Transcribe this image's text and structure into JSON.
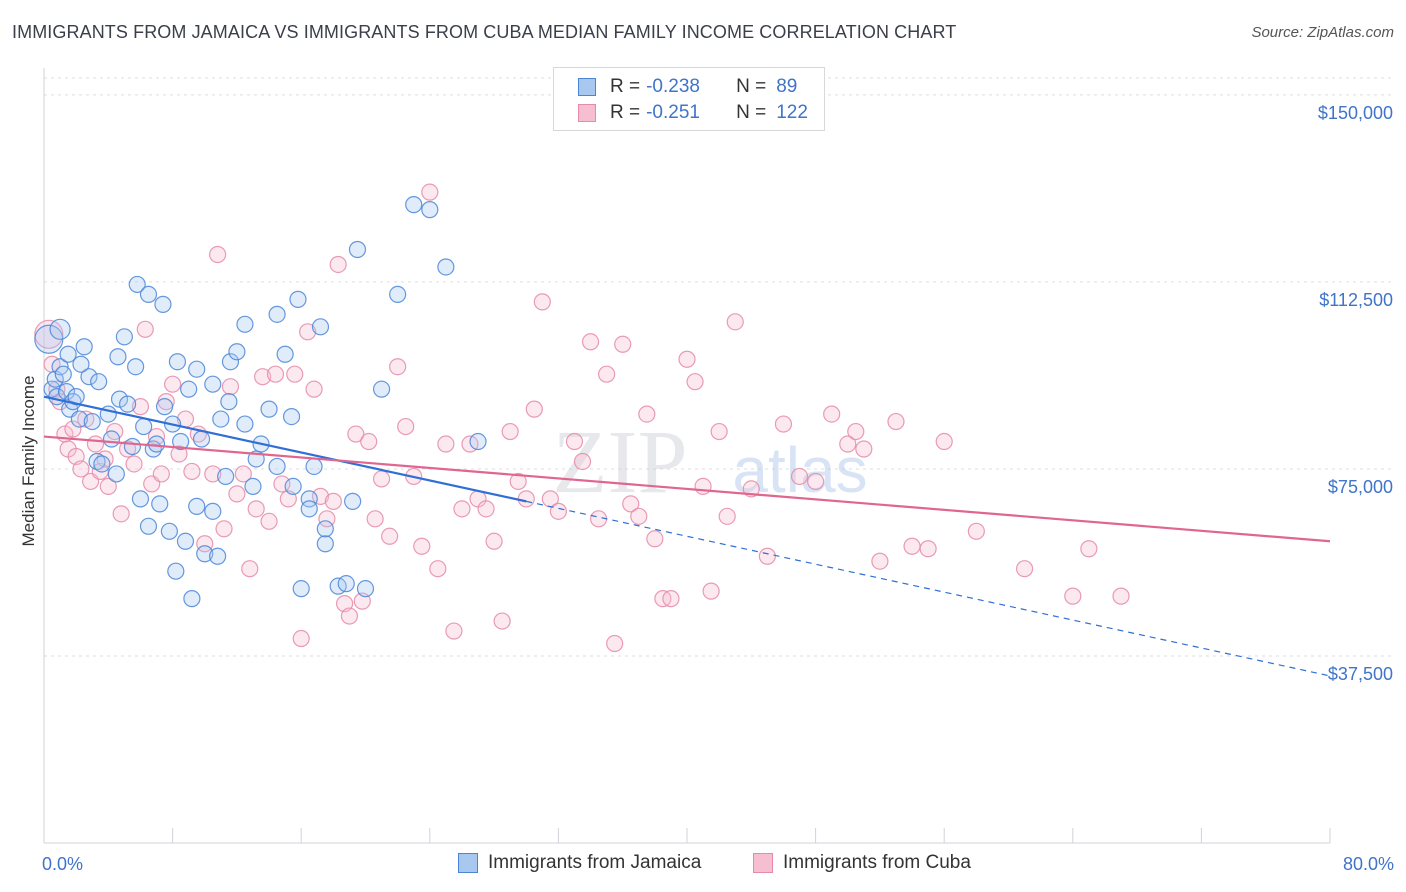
{
  "title": "IMMIGRANTS FROM JAMAICA VS IMMIGRANTS FROM CUBA MEDIAN FAMILY INCOME CORRELATION CHART",
  "source": "Source: ZipAtlas.com",
  "watermark": {
    "zip": "ZIP",
    "atlas": "atlas"
  },
  "colors": {
    "jamaica_fill": "#a9c8f0",
    "jamaica_stroke": "#4a86d8",
    "jamaica_line": "#2f6fd6",
    "cuba_fill": "#f6bfd1",
    "cuba_stroke": "#e58aa8",
    "cuba_line": "#e0668f",
    "tick_text": "#3f74c9",
    "grid": "#d9dde3"
  },
  "legend": {
    "rows": [
      {
        "r_label": "R =",
        "r_value": "-0.238",
        "n_label": "N =",
        "n_value": "89"
      },
      {
        "r_label": "R =",
        "r_value": "-0.251",
        "n_label": "N =",
        "n_value": "122"
      }
    ]
  },
  "bottom_legend": [
    "Immigrants from Jamaica",
    "Immigrants from Cuba"
  ],
  "chart_data": {
    "type": "scatter",
    "xlabel": "",
    "ylabel": "Median Family Income",
    "xlim": [
      0,
      80
    ],
    "ylim": [
      0,
      157000
    ],
    "x_tick_labels": [
      "0.0%",
      "80.0%"
    ],
    "y_ticks": [
      37500,
      75000,
      112500,
      150000
    ],
    "y_tick_labels": [
      "$37,500",
      "$75,000",
      "$112,500",
      "$150,000"
    ],
    "grid": true,
    "legend_position": "top-center",
    "series": [
      {
        "name": "Immigrants from Jamaica",
        "trend": {
          "x0": 0,
          "y0": 89500,
          "x1": 30,
          "y1": 68500,
          "dash_to_x": 80,
          "dash_to_y": 33500
        },
        "points": [
          [
            0.3,
            101000,
            14
          ],
          [
            0.5,
            91000,
            8
          ],
          [
            0.7,
            93000,
            8
          ],
          [
            0.8,
            89500,
            8
          ],
          [
            1.0,
            95500,
            8
          ],
          [
            1.2,
            94000,
            8
          ],
          [
            1.4,
            90500,
            8
          ],
          [
            1.6,
            87000,
            8
          ],
          [
            1.8,
            88500,
            8
          ],
          [
            2.0,
            89500,
            8
          ],
          [
            2.2,
            85000,
            8
          ],
          [
            2.5,
            99500,
            8
          ],
          [
            2.8,
            93500,
            8
          ],
          [
            3.0,
            84500,
            8
          ],
          [
            3.3,
            76500,
            8
          ],
          [
            3.6,
            76000,
            8
          ],
          [
            4.0,
            86000,
            8
          ],
          [
            4.2,
            81000,
            8
          ],
          [
            4.5,
            74000,
            8
          ],
          [
            4.7,
            89000,
            8
          ],
          [
            5.0,
            101500,
            8
          ],
          [
            5.2,
            88000,
            8
          ],
          [
            5.5,
            79500,
            8
          ],
          [
            5.7,
            95500,
            8
          ],
          [
            6.0,
            69000,
            8
          ],
          [
            6.2,
            83500,
            8
          ],
          [
            6.5,
            63500,
            8
          ],
          [
            6.8,
            79000,
            8
          ],
          [
            7.0,
            80000,
            8
          ],
          [
            7.2,
            68000,
            8
          ],
          [
            7.5,
            87500,
            8
          ],
          [
            7.8,
            62500,
            8
          ],
          [
            8.0,
            84000,
            8
          ],
          [
            8.2,
            54500,
            8
          ],
          [
            8.5,
            80500,
            8
          ],
          [
            8.8,
            60500,
            8
          ],
          [
            9.0,
            91000,
            8
          ],
          [
            9.2,
            49000,
            8
          ],
          [
            9.5,
            67500,
            8
          ],
          [
            9.8,
            81000,
            8
          ],
          [
            10.0,
            58000,
            8
          ],
          [
            10.5,
            66500,
            8
          ],
          [
            10.8,
            57500,
            8
          ],
          [
            11.0,
            85000,
            8
          ],
          [
            11.3,
            73500,
            8
          ],
          [
            11.6,
            96500,
            8
          ],
          [
            12.0,
            98500,
            8
          ],
          [
            12.5,
            104000,
            8
          ],
          [
            13.0,
            71500,
            8
          ],
          [
            13.2,
            77000,
            8
          ],
          [
            14.0,
            87000,
            8
          ],
          [
            14.5,
            106000,
            8
          ],
          [
            15.0,
            98000,
            8
          ],
          [
            15.4,
            85500,
            8
          ],
          [
            15.8,
            109000,
            8
          ],
          [
            16.0,
            51000,
            8
          ],
          [
            16.5,
            69000,
            8
          ],
          [
            16.8,
            75500,
            8
          ],
          [
            17.2,
            103500,
            8
          ],
          [
            17.5,
            60000,
            8
          ],
          [
            18.3,
            51500,
            8
          ],
          [
            18.8,
            52000,
            8
          ],
          [
            19.2,
            68500,
            8
          ],
          [
            19.5,
            119000,
            8
          ],
          [
            20.0,
            51000,
            8
          ],
          [
            21.0,
            91000,
            8
          ],
          [
            22.0,
            110000,
            8
          ],
          [
            23.0,
            128000,
            8
          ],
          [
            24.0,
            127000,
            8
          ],
          [
            25.0,
            115500,
            8
          ],
          [
            27.0,
            80500,
            8
          ],
          [
            1.0,
            103000,
            10
          ],
          [
            1.5,
            98000,
            8
          ],
          [
            2.3,
            96000,
            8
          ],
          [
            3.4,
            92500,
            8
          ],
          [
            4.6,
            97500,
            8
          ],
          [
            5.8,
            112000,
            8
          ],
          [
            6.5,
            110000,
            8
          ],
          [
            7.4,
            108000,
            8
          ],
          [
            8.3,
            96500,
            8
          ],
          [
            9.5,
            95000,
            8
          ],
          [
            10.5,
            92000,
            8
          ],
          [
            11.5,
            88500,
            8
          ],
          [
            12.5,
            84000,
            8
          ],
          [
            13.5,
            80000,
            8
          ],
          [
            14.5,
            75500,
            8
          ],
          [
            15.5,
            71500,
            8
          ],
          [
            16.5,
            67000,
            8
          ],
          [
            17.5,
            63000,
            8
          ]
        ]
      },
      {
        "name": "Immigrants from Cuba",
        "trend": {
          "x0": 0,
          "y0": 81500,
          "x1": 80,
          "y1": 60500
        },
        "points": [
          [
            0.3,
            102000,
            14
          ],
          [
            0.5,
            96000,
            8
          ],
          [
            0.8,
            91000,
            8
          ],
          [
            1.0,
            88500,
            8
          ],
          [
            1.3,
            82000,
            8
          ],
          [
            1.5,
            79000,
            8
          ],
          [
            1.8,
            83000,
            8
          ],
          [
            2.0,
            77500,
            8
          ],
          [
            2.3,
            75000,
            8
          ],
          [
            2.6,
            85000,
            8
          ],
          [
            2.9,
            72500,
            8
          ],
          [
            3.2,
            80000,
            8
          ],
          [
            3.5,
            74500,
            8
          ],
          [
            3.8,
            77000,
            8
          ],
          [
            4.0,
            71500,
            8
          ],
          [
            4.4,
            82500,
            8
          ],
          [
            4.8,
            66000,
            8
          ],
          [
            5.2,
            79000,
            8
          ],
          [
            5.6,
            76000,
            8
          ],
          [
            6.0,
            87500,
            8
          ],
          [
            6.3,
            103000,
            8
          ],
          [
            6.7,
            72000,
            8
          ],
          [
            7.0,
            81500,
            8
          ],
          [
            7.3,
            74000,
            8
          ],
          [
            7.6,
            88500,
            8
          ],
          [
            8.0,
            92000,
            8
          ],
          [
            8.4,
            78000,
            8
          ],
          [
            8.8,
            85000,
            8
          ],
          [
            9.2,
            74500,
            8
          ],
          [
            9.6,
            82000,
            8
          ],
          [
            10.0,
            60000,
            8
          ],
          [
            10.5,
            74000,
            8
          ],
          [
            10.8,
            118000,
            8
          ],
          [
            11.2,
            63000,
            8
          ],
          [
            11.6,
            91500,
            8
          ],
          [
            12.0,
            70000,
            8
          ],
          [
            12.4,
            74000,
            8
          ],
          [
            12.8,
            55000,
            8
          ],
          [
            13.2,
            67000,
            8
          ],
          [
            13.6,
            93500,
            8
          ],
          [
            14.0,
            64500,
            8
          ],
          [
            14.4,
            94000,
            8
          ],
          [
            14.8,
            72000,
            8
          ],
          [
            15.2,
            69000,
            8
          ],
          [
            15.6,
            94000,
            8
          ],
          [
            16.0,
            41000,
            8
          ],
          [
            16.4,
            102500,
            8
          ],
          [
            16.8,
            91000,
            8
          ],
          [
            17.2,
            69500,
            8
          ],
          [
            17.6,
            65000,
            8
          ],
          [
            18.0,
            68500,
            8
          ],
          [
            18.3,
            116000,
            8
          ],
          [
            18.7,
            48000,
            8
          ],
          [
            19.0,
            45500,
            8
          ],
          [
            19.4,
            82000,
            8
          ],
          [
            19.8,
            48500,
            8
          ],
          [
            20.2,
            80500,
            8
          ],
          [
            20.6,
            65000,
            8
          ],
          [
            21.0,
            73000,
            8
          ],
          [
            21.5,
            61500,
            8
          ],
          [
            22.0,
            95500,
            8
          ],
          [
            22.5,
            83500,
            8
          ],
          [
            23.0,
            73500,
            8
          ],
          [
            23.5,
            59500,
            8
          ],
          [
            24.0,
            130500,
            8
          ],
          [
            24.5,
            55000,
            8
          ],
          [
            25.0,
            80000,
            8
          ],
          [
            25.5,
            42500,
            8
          ],
          [
            26.0,
            67000,
            8
          ],
          [
            26.5,
            80000,
            8
          ],
          [
            27.0,
            69000,
            8
          ],
          [
            27.5,
            67000,
            8
          ],
          [
            28.0,
            60500,
            8
          ],
          [
            28.5,
            44500,
            8
          ],
          [
            29.0,
            82500,
            8
          ],
          [
            29.5,
            72500,
            8
          ],
          [
            30.0,
            69000,
            8
          ],
          [
            30.5,
            87000,
            8
          ],
          [
            31.0,
            108500,
            8
          ],
          [
            31.5,
            69000,
            8
          ],
          [
            32.0,
            66500,
            8
          ],
          [
            33.0,
            80500,
            8
          ],
          [
            33.5,
            76500,
            8
          ],
          [
            34.0,
            100500,
            8
          ],
          [
            34.5,
            65000,
            8
          ],
          [
            35.0,
            94000,
            8
          ],
          [
            35.5,
            40000,
            8
          ],
          [
            36.0,
            100000,
            8
          ],
          [
            36.5,
            68000,
            8
          ],
          [
            37.0,
            65500,
            8
          ],
          [
            37.5,
            86000,
            8
          ],
          [
            38.0,
            61000,
            8
          ],
          [
            38.5,
            49000,
            8
          ],
          [
            39.0,
            49000,
            8
          ],
          [
            40.0,
            97000,
            8
          ],
          [
            40.5,
            92500,
            8
          ],
          [
            41.0,
            71500,
            8
          ],
          [
            41.5,
            50500,
            8
          ],
          [
            42.0,
            82500,
            8
          ],
          [
            42.5,
            65500,
            8
          ],
          [
            43.0,
            104500,
            8
          ],
          [
            44.0,
            71000,
            8
          ],
          [
            45.0,
            57500,
            8
          ],
          [
            46.0,
            84000,
            8
          ],
          [
            47.0,
            73500,
            8
          ],
          [
            48.0,
            72500,
            8
          ],
          [
            49.0,
            86000,
            8
          ],
          [
            50.0,
            80000,
            8
          ],
          [
            50.5,
            82500,
            8
          ],
          [
            51.0,
            79000,
            8
          ],
          [
            52.0,
            56500,
            8
          ],
          [
            53.0,
            84500,
            8
          ],
          [
            54.0,
            59500,
            8
          ],
          [
            55.0,
            59000,
            8
          ],
          [
            56.0,
            80500,
            8
          ],
          [
            58.0,
            62500,
            8
          ],
          [
            61.0,
            55000,
            8
          ],
          [
            64.0,
            49500,
            8
          ],
          [
            65.0,
            59000,
            8
          ],
          [
            67.0,
            49500,
            8
          ]
        ]
      }
    ]
  }
}
